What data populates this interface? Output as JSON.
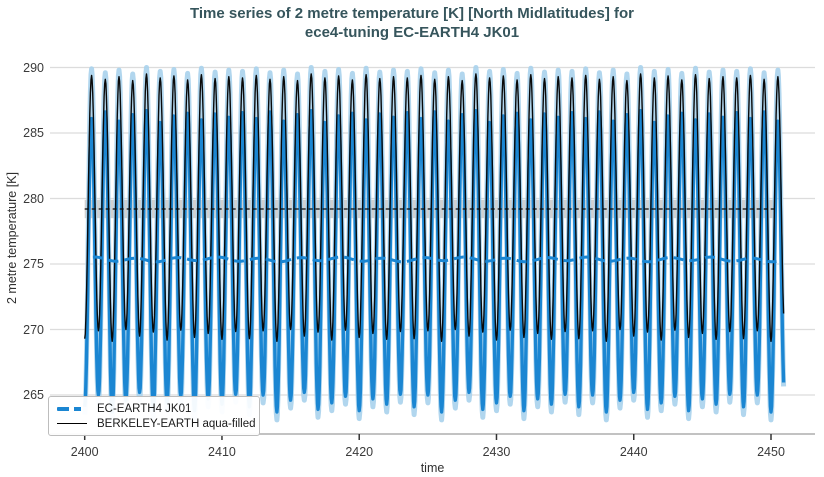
{
  "title": {
    "line1": "Time series of 2 metre temperature [K] [North Midlatitudes] for",
    "line2": "ece4-tuning EC-EARTH4 JK01"
  },
  "colors": {
    "title_text": "#36555c",
    "model_blue": "#1b86d2",
    "obs_black": "#0a0a0a",
    "aqua_fill": "#a9d2ec",
    "mean_band_gray": "#c6c6c6",
    "gridline": "#dcdcdc",
    "axis_spine": "#c2c2c2",
    "tick_mark": "#333333",
    "tick_text": "#3a3a3a"
  },
  "legend": {
    "items": [
      {
        "label": "EC-EARTH4 JK01",
        "swatch": "thick-dashed-blue"
      },
      {
        "label": "BERKELEY-EARTH aqua-filled",
        "swatch": "thin-solid-black"
      }
    ]
  },
  "chart_data": {
    "type": "line",
    "title": "Time series of 2 metre temperature [K] [North Midlatitudes] for ece4-tuning EC-EARTH4 JK01",
    "xlabel": "time",
    "ylabel": "2 metre temperature [K]",
    "xticks": [
      2400,
      2410,
      2420,
      2430,
      2440,
      2450
    ],
    "yticks": [
      265,
      270,
      275,
      280,
      285,
      290
    ],
    "xlim": [
      2397.5,
      2453.2
    ],
    "ylim": [
      262.0,
      290.5
    ],
    "grid": "horizontal-only",
    "legend_position": "lower-left",
    "x_start": 2400,
    "x_end": 2450.92,
    "seasonal_samples_per_year": 24,
    "series": [
      {
        "name": "EC-EARTH4 JK01",
        "color": "#1b86d2",
        "width": 3.4,
        "seasonal_cycle": {
          "period_years": 1,
          "winter_min_at_year_start": true,
          "summer_max_pattern": [
            286.1,
            286.6,
            285.9,
            286.4,
            286.7,
            285.8,
            286.3,
            286.5,
            286.0,
            286.45,
            286.2,
            286.55
          ],
          "winter_min_pattern": [
            264.1,
            265.0,
            263.7,
            264.6,
            265.2,
            263.9,
            264.4,
            264.9,
            263.8,
            264.7,
            264.3,
            265.05
          ]
        },
        "running_mean": {
          "value": 275.35,
          "wiggle": 0.14,
          "start": 2400.6,
          "end": 2450.42,
          "style": "thick-dashed"
        }
      },
      {
        "name": "BERKELEY-EARTH aqua-filled",
        "color": "#0a0a0a",
        "width": 1.4,
        "seasonal_cycle": {
          "period_years": 1,
          "winter_min_at_year_start": true,
          "summer_max_pattern": [
            289.4,
            289.1,
            289.3,
            289.0,
            289.5,
            289.2,
            289.35,
            289.05,
            289.45,
            289.15,
            289.3,
            289.2
          ],
          "winter_min_pattern": [
            269.3,
            269.9,
            269.1,
            270.0,
            269.5,
            269.8,
            269.2,
            269.95,
            269.4,
            269.7,
            269.25,
            269.85
          ]
        },
        "envelope": {
          "color": "#a9d2ec",
          "width": 5.0,
          "summer_max_pattern": [
            289.9,
            289.6,
            289.8,
            289.5,
            290.0,
            289.7,
            289.85,
            289.55,
            289.95,
            289.65,
            289.8,
            289.7
          ],
          "winter_min_pattern": [
            263.5,
            264.4,
            263.1,
            264.0,
            264.6,
            263.3,
            263.8,
            264.3,
            263.2,
            264.1,
            263.7,
            264.45
          ]
        },
        "mean_line": {
          "value": 279.2,
          "band": [
            278.5,
            279.9
          ],
          "start": 2400.0,
          "end": 2450.42,
          "style": "thin-dashed"
        }
      }
    ]
  }
}
